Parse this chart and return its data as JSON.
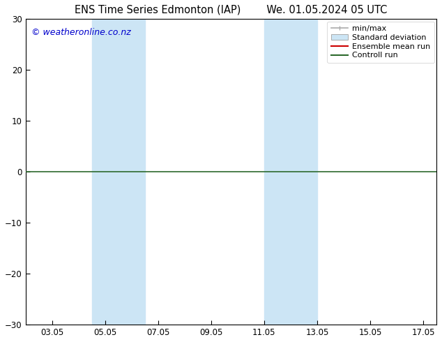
{
  "title_left": "ENS Time Series Edmonton (IAP)",
  "title_right": "We. 01.05.2024 05 UTC",
  "xlabel_ticks": [
    "03.05",
    "05.05",
    "07.05",
    "09.05",
    "11.05",
    "13.05",
    "15.05",
    "17.05"
  ],
  "x_tick_values": [
    3,
    5,
    7,
    9,
    11,
    13,
    15,
    17
  ],
  "ylim": [
    -30,
    30
  ],
  "xlim": [
    2.0,
    17.5
  ],
  "yticks": [
    -30,
    -20,
    -10,
    0,
    10,
    20,
    30
  ],
  "zero_line_color": "#2d6a2d",
  "watermark_text": "© weatheronline.co.nz",
  "watermark_color": "#0000cc",
  "shaded_bands": [
    {
      "xmin": 4.5,
      "xmax": 5.5,
      "color": "#cce5f5"
    },
    {
      "xmin": 5.5,
      "xmax": 6.5,
      "color": "#cce5f5"
    },
    {
      "xmin": 11.0,
      "xmax": 12.0,
      "color": "#cce5f5"
    },
    {
      "xmin": 12.0,
      "xmax": 13.0,
      "color": "#cce5f5"
    }
  ],
  "legend_items": [
    {
      "label": "min/max",
      "type": "errorbar",
      "color": "#aaaaaa",
      "linewidth": 1.2
    },
    {
      "label": "Standard deviation",
      "type": "bar",
      "facecolor": "#cce5f5",
      "edgecolor": "#aaaaaa"
    },
    {
      "label": "Ensemble mean run",
      "type": "line",
      "color": "#cc0000",
      "linewidth": 1.5
    },
    {
      "label": "Controll run",
      "type": "line",
      "color": "#2d6a2d",
      "linewidth": 1.5
    }
  ],
  "background_color": "#ffffff",
  "plot_bg_color": "#ffffff",
  "font_color": "#000000",
  "title_fontsize": 10.5,
  "tick_fontsize": 8.5,
  "legend_fontsize": 8,
  "watermark_fontsize": 9
}
